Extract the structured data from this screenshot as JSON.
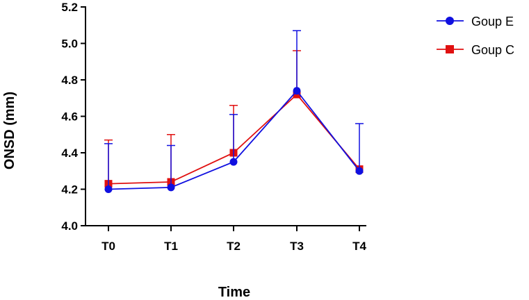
{
  "chart_data": {
    "type": "line",
    "title": "",
    "xlabel": "Time",
    "ylabel": "ONSD (mm)",
    "categories": [
      "T0",
      "T1",
      "T2",
      "T3",
      "T4"
    ],
    "ylim": [
      4.0,
      5.2
    ],
    "yticks": [
      "4.0",
      "4.2",
      "4.4",
      "4.6",
      "4.8",
      "5.0",
      "5.2"
    ],
    "grid": false,
    "legend_position": "top-right",
    "series": [
      {
        "name": "Goup E",
        "color": "#1010e0",
        "marker": "circle",
        "values": [
          4.2,
          4.21,
          4.35,
          4.74,
          4.3
        ],
        "error_upper": [
          4.45,
          4.44,
          4.61,
          5.07,
          4.56
        ]
      },
      {
        "name": "Goup C",
        "color": "#e01010",
        "marker": "square",
        "values": [
          4.23,
          4.24,
          4.4,
          4.72,
          4.31
        ],
        "error_upper": [
          4.47,
          4.5,
          4.66,
          4.96,
          4.31
        ]
      }
    ]
  }
}
